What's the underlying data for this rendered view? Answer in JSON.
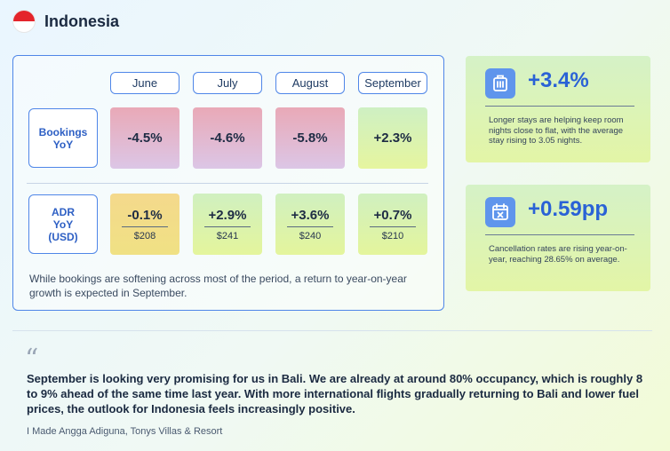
{
  "header": {
    "title": "Indonesia",
    "flag_colors": [
      "#e4242b",
      "#ffffff"
    ]
  },
  "chart_data": {
    "type": "table",
    "categories": [
      "June",
      "July",
      "August",
      "September"
    ],
    "series": [
      {
        "name": "Bookings YoY",
        "values": [
          -4.5,
          -4.6,
          -5.8,
          2.3
        ],
        "labels": [
          "-4.5%",
          "-4.6%",
          "-5.8%",
          "+2.3%"
        ]
      },
      {
        "name": "ADR YoY (USD)",
        "values": [
          -0.1,
          2.9,
          3.6,
          0.7
        ],
        "labels": [
          "-0.1%",
          "+2.9%",
          "+3.6%",
          "+0.7%"
        ],
        "sub_labels": [
          "$208",
          "$241",
          "$240",
          "$210"
        ]
      }
    ],
    "row_labels": [
      [
        "Bookings",
        "YoY"
      ],
      [
        "ADR",
        "YoY",
        "(USD)"
      ]
    ],
    "note": "While bookings are softening across most of the period, a return to year-on-year growth is expected in September."
  },
  "stats": [
    {
      "icon": "luggage-icon",
      "value": "+3.4%",
      "text": "Longer stays are helping keep room nights close to flat, with the average stay rising to 3.05 nights."
    },
    {
      "icon": "calendar-cancel-icon",
      "value": "+0.59pp",
      "text": "Cancellation rates are rising year-on-year, reaching 28.65% on average."
    }
  ],
  "quote": {
    "mark": "“",
    "text": "September is looking very promising for us in Bali. We are already at around 80% occupancy, which is roughly 8 to 9% ahead of the same time last year. With more international flights gradually returning to Bali and lower fuel prices, the outlook for Indonesia feels increasingly positive.",
    "attribution": "I Made Angga Adiguna, Tonys Villas & Resort"
  },
  "colors": {
    "accent": "#4f86e8",
    "stat_value": "#2a62d6",
    "negative_bookings": "#e9a9b7",
    "positive": "#cef0c3",
    "adr_negative": "#f4d98c"
  }
}
